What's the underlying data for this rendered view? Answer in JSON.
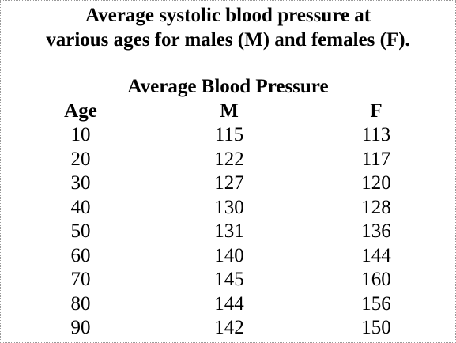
{
  "title_lines": [
    "Average systolic blood pressure at",
    "various ages for males (M) and females (F)."
  ],
  "table": {
    "caption": "Average Blood Pressure",
    "columns": [
      "Age",
      "M",
      "F"
    ],
    "rows": [
      [
        "10",
        "115",
        "113"
      ],
      [
        "20",
        "122",
        "117"
      ],
      [
        "30",
        "127",
        "120"
      ],
      [
        "40",
        "130",
        "128"
      ],
      [
        "50",
        "131",
        "136"
      ],
      [
        "60",
        "140",
        "144"
      ],
      [
        "70",
        "145",
        "160"
      ],
      [
        "80",
        "144",
        "156"
      ],
      [
        "90",
        "142",
        "150"
      ]
    ]
  }
}
